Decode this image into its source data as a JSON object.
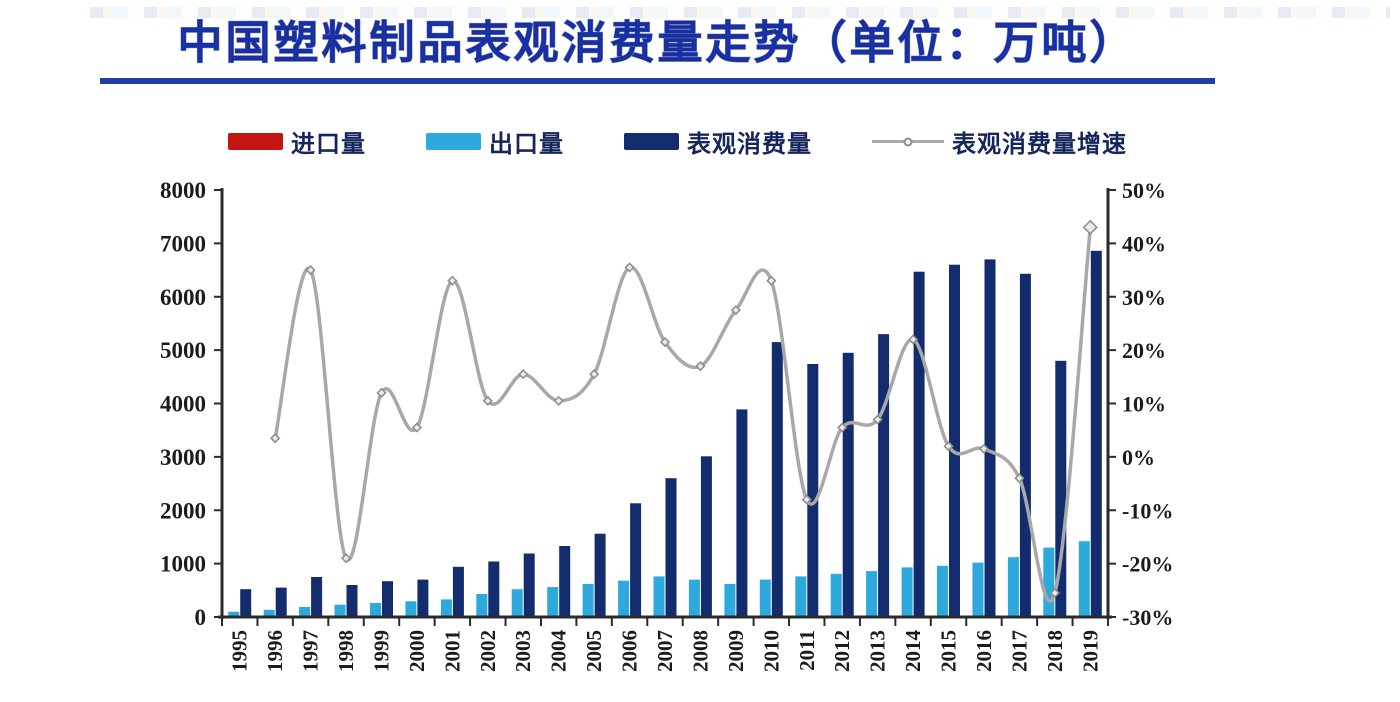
{
  "header": {
    "title": "中国塑料制品表观消费量走势（单位：万吨）",
    "title_color": "#1c35b5",
    "underline_color": "#1d3da8"
  },
  "legend": {
    "text_color": "#16265c",
    "items": [
      {
        "label": "进口量",
        "color": "#c41414",
        "type": "bar"
      },
      {
        "label": "出口量",
        "color": "#2ea9dd",
        "type": "bar"
      },
      {
        "label": "表观消费量",
        "color": "#122c6e",
        "type": "bar"
      },
      {
        "label": "表观消费量增速",
        "color": "#a8a8a8",
        "type": "line"
      }
    ]
  },
  "chart_data": {
    "type": "bar",
    "title": "中国塑料制品表观消费量走势（单位：万吨）",
    "xlabel": "",
    "ylabel_left": "万吨",
    "ylabel_right": "%",
    "grid": false,
    "legend_position": "top",
    "categories": [
      "1995",
      "1996",
      "1997",
      "1998",
      "1999",
      "2000",
      "2001",
      "2002",
      "2003",
      "2004",
      "2005",
      "2006",
      "2007",
      "2008",
      "2009",
      "2010",
      "2011",
      "2012",
      "2013",
      "2014",
      "2015",
      "2016",
      "2017",
      "2018",
      "2019"
    ],
    "series": [
      {
        "name": "进口量",
        "type": "bar",
        "axis": "left",
        "color": "#c41414",
        "values": [
          0,
          0,
          0,
          0,
          0,
          0,
          0,
          0,
          0,
          0,
          0,
          0,
          0,
          0,
          0,
          0,
          0,
          0,
          0,
          0,
          0,
          0,
          0,
          0,
          0
        ]
      },
      {
        "name": "出口量",
        "type": "bar",
        "axis": "left",
        "color": "#2ea9dd",
        "values": [
          100,
          135,
          190,
          230,
          265,
          295,
          330,
          430,
          520,
          560,
          620,
          680,
          760,
          700,
          620,
          700,
          760,
          810,
          860,
          930,
          960,
          1020,
          1120,
          1300,
          1420
        ]
      },
      {
        "name": "表观消费量",
        "type": "bar",
        "axis": "left",
        "color": "#122c6e",
        "values": [
          520,
          550,
          750,
          600,
          670,
          700,
          940,
          1040,
          1190,
          1330,
          1560,
          2130,
          2600,
          3010,
          3890,
          5150,
          4740,
          4950,
          5300,
          6470,
          6600,
          6700,
          6430,
          4800,
          6860
        ]
      },
      {
        "name": "表观消费量增速",
        "type": "line",
        "axis": "right",
        "color": "#a8a8a8",
        "values_pct": [
          null,
          3.5,
          35,
          -19,
          12,
          5.5,
          33,
          10.5,
          15.5,
          10.5,
          15.5,
          35.5,
          21.5,
          17,
          27.5,
          33,
          -8,
          5.5,
          7,
          22,
          2,
          1.5,
          -4,
          -25.5,
          43
        ]
      }
    ],
    "left_axis": {
      "min": 0,
      "max": 8000,
      "step": 1000,
      "tick_labels": [
        "0",
        "1000",
        "2000",
        "3000",
        "4000",
        "5000",
        "6000",
        "7000",
        "8000"
      ]
    },
    "right_axis": {
      "min": -30,
      "max": 50,
      "step": 10,
      "tick_labels": [
        "-30%",
        "-20%",
        "-10%",
        "0%",
        "10%",
        "20%",
        "30%",
        "40%",
        "50%"
      ]
    },
    "axis_color": "#2b2b2b",
    "tick_text_color": "#1b1b1b"
  }
}
